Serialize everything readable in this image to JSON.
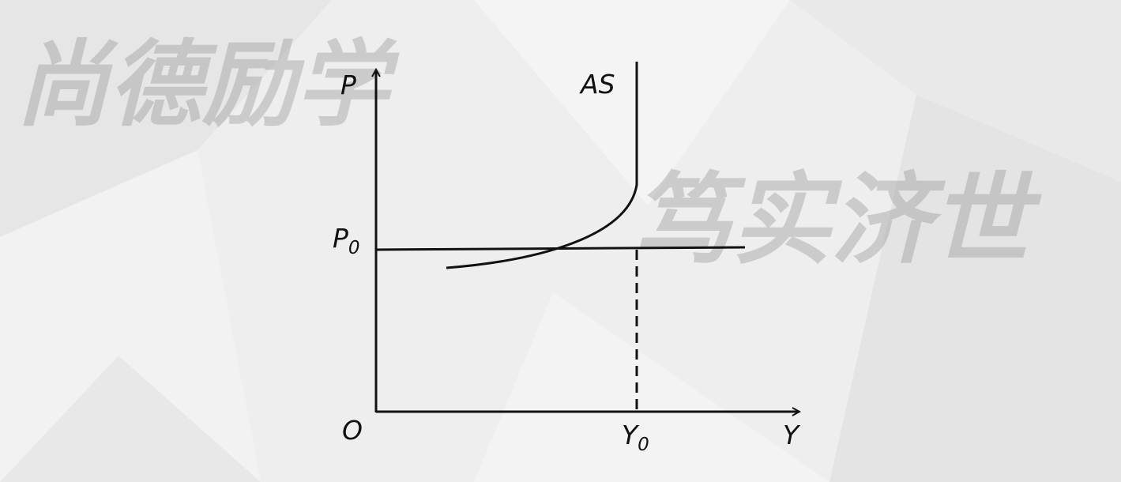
{
  "watermark": {
    "left": "尚德励学",
    "right": "笃实济世"
  },
  "diagram": {
    "curve_name": "AS",
    "y_axis_label": "P",
    "x_axis_label": "Y",
    "origin_label": "O",
    "price_level": {
      "base": "P",
      "sub": "0"
    },
    "output_level": {
      "base": "Y",
      "sub": "0"
    }
  },
  "colors": {
    "background": "#eeeeee",
    "ink": "#111111"
  }
}
